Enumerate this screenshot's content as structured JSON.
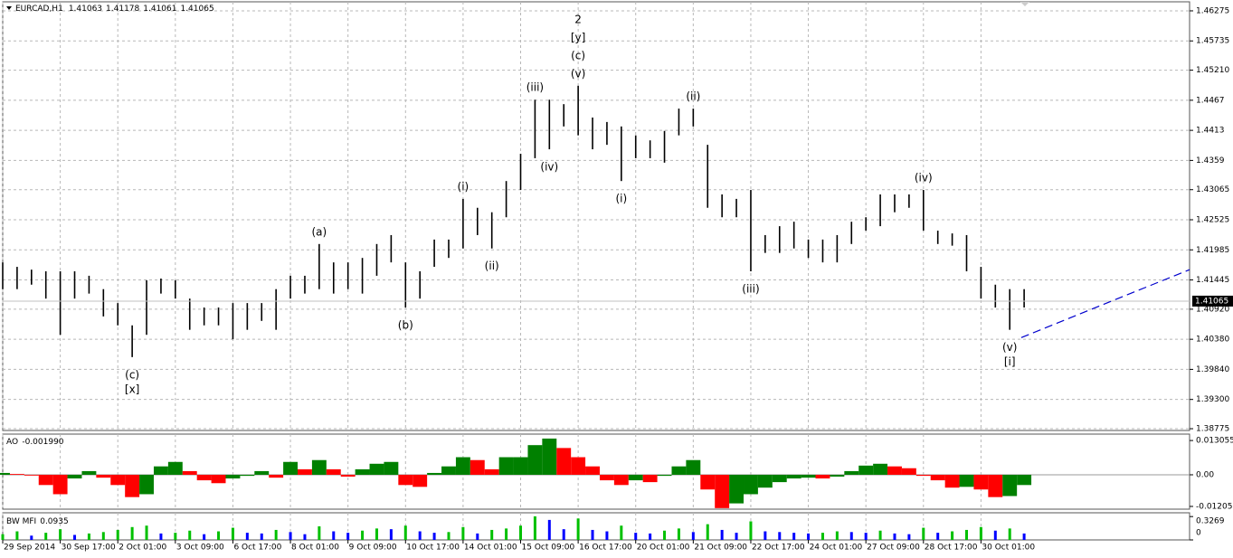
{
  "chart_data": [
    {
      "type": "bars",
      "title": "EURCAD,H1",
      "quote": [
        1.41063,
        1.41178,
        1.41061,
        1.41065
      ],
      "color": "#000000",
      "grid": true,
      "high": [
        1.4176,
        1.4168,
        1.4163,
        1.416,
        1.416,
        1.416,
        1.4152,
        1.4128,
        1.4103,
        1.4063,
        1.4144,
        1.4147,
        1.4144,
        1.4111,
        1.4095,
        1.4095,
        1.4103,
        1.4103,
        1.4103,
        1.4128,
        1.4152,
        1.4152,
        1.4209,
        1.4176,
        1.4176,
        1.4184,
        1.4209,
        1.4225,
        1.4176,
        1.416,
        1.4217,
        1.4217,
        1.429,
        1.4274,
        1.4266,
        1.4322,
        1.4371,
        1.4468,
        1.4468,
        1.446,
        1.4493,
        1.4436,
        1.4428,
        1.442,
        1.4404,
        1.4395,
        1.4412,
        1.4452,
        1.4452,
        1.4387,
        1.4298,
        1.429,
        1.4306,
        1.4225,
        1.4241,
        1.4249,
        1.4217,
        1.4217,
        1.4225,
        1.4249,
        1.4257,
        1.4298,
        1.4298,
        1.4298,
        1.4306,
        1.4233,
        1.4228,
        1.4225,
        1.4168,
        1.4136,
        1.4128,
        1.4128
      ],
      "low": [
        1.4128,
        1.4128,
        1.4136,
        1.4111,
        1.4046,
        1.4111,
        1.412,
        1.4079,
        1.4063,
        1.4006,
        1.4046,
        1.412,
        1.4111,
        1.4055,
        1.4063,
        1.4063,
        1.4038,
        1.4055,
        1.4071,
        1.4055,
        1.4111,
        1.412,
        1.4128,
        1.412,
        1.4128,
        1.412,
        1.4152,
        1.4176,
        1.4095,
        1.4111,
        1.4168,
        1.4184,
        1.4201,
        1.4225,
        1.4201,
        1.4257,
        1.4306,
        1.4363,
        1.4379,
        1.442,
        1.4404,
        1.4379,
        1.4387,
        1.4322,
        1.4363,
        1.4363,
        1.4355,
        1.4404,
        1.442,
        1.4274,
        1.4257,
        1.4257,
        1.416,
        1.4193,
        1.4193,
        1.4201,
        1.4184,
        1.4176,
        1.4176,
        1.4209,
        1.4233,
        1.4241,
        1.4266,
        1.4274,
        1.4233,
        1.4209,
        1.4206,
        1.416,
        1.4111,
        1.4095,
        1.4055,
        1.4095
      ],
      "xlim": [
        0,
        82.5
      ],
      "xticks": [
        {
          "value": 0,
          "label": "29 Sep 2014"
        },
        {
          "value": 4,
          "label": "30 Sep 17:00"
        },
        {
          "value": 8,
          "label": "2 Oct 01:00"
        },
        {
          "value": 12,
          "label": "3 Oct 09:00"
        },
        {
          "value": 16,
          "label": "6 Oct 17:00"
        },
        {
          "value": 20,
          "label": "8 Oct 01:00"
        },
        {
          "value": 24,
          "label": "9 Oct 09:00"
        },
        {
          "value": 28,
          "label": "10 Oct 17:00"
        },
        {
          "value": 32,
          "label": "14 Oct 01:00"
        },
        {
          "value": 36,
          "label": "15 Oct 09:00"
        },
        {
          "value": 40,
          "label": "16 Oct 17:00"
        },
        {
          "value": 44,
          "label": "20 Oct 01:00"
        },
        {
          "value": 48,
          "label": "21 Oct 09:00"
        },
        {
          "value": 52,
          "label": "22 Oct 17:00"
        },
        {
          "value": 56,
          "label": "24 Oct 01:00"
        },
        {
          "value": 60,
          "label": "27 Oct 09:00"
        },
        {
          "value": 64,
          "label": "28 Oct 17:00"
        },
        {
          "value": 68,
          "label": "30 Oct 01:00"
        }
      ],
      "ylim": [
        1.38743,
        1.46437
      ],
      "yticks": [
        1.46275,
        1.45735,
        {
          "value": 1.4521,
          "label": "1.45210"
        },
        1.4467,
        1.4413,
        1.4359,
        1.43065,
        1.42525,
        1.41985,
        1.41445,
        {
          "value": 1.4092,
          "label": "1.40920"
        },
        {
          "value": 1.4038,
          "label": "1.40380"
        },
        {
          "value": 1.3984,
          "label": "1.39840"
        },
        {
          "value": 1.393,
          "label": "1.39300"
        },
        1.38775
      ],
      "last_price": 1.41065,
      "trendline": {
        "x": [
          70.8,
          82.5
        ],
        "y": [
          1.4041,
          1.4163
        ],
        "color": "#0000cd"
      },
      "annotations": [
        {
          "bar": 40,
          "side": "above",
          "texts": [
            "2",
            "[y]",
            "(c)",
            "(v)"
          ]
        },
        {
          "bar": 37,
          "side": "above",
          "texts": [
            "(iii)"
          ]
        },
        {
          "bar": 38,
          "side": "below",
          "texts": [
            "(iv)"
          ]
        },
        {
          "bar": 32,
          "side": "above",
          "texts": [
            "(i)"
          ]
        },
        {
          "bar": 34,
          "side": "below",
          "texts": [
            "(ii)"
          ]
        },
        {
          "bar": 22,
          "side": "above",
          "texts": [
            "(a)"
          ]
        },
        {
          "bar": 28,
          "side": "below",
          "texts": [
            "(b)"
          ]
        },
        {
          "bar": 9,
          "side": "below",
          "texts": [
            "(c)",
            "[x]"
          ]
        },
        {
          "bar": 43,
          "side": "below",
          "texts": [
            "(i)"
          ]
        },
        {
          "bar": 48,
          "side": "above",
          "texts": [
            "(ii)"
          ]
        },
        {
          "bar": 52,
          "side": "below",
          "texts": [
            "(iii)"
          ]
        },
        {
          "bar": 64,
          "side": "above",
          "texts": [
            "(iv)"
          ]
        },
        {
          "bar": 70,
          "side": "below",
          "texts": [
            "(v)",
            "[i]"
          ]
        }
      ]
    },
    {
      "type": "oscillator",
      "title": "AO",
      "current": {
        "value": -0.00199,
        "label": "-0.001990"
      },
      "up_color": "#008000",
      "down_color": "#ff0000",
      "values": [
        0.0007,
        0.0003,
        -0.0003,
        -0.0039,
        -0.0074,
        -0.0014,
        0.0014,
        -0.0011,
        -0.0039,
        -0.0085,
        -0.0074,
        0.0032,
        0.0049,
        0.0014,
        -0.0021,
        -0.0032,
        -0.0014,
        -0.0004,
        0.0014,
        -0.0011,
        0.0049,
        0.0021,
        0.0056,
        0.0021,
        -0.0007,
        0.0021,
        0.0042,
        0.0049,
        -0.0039,
        -0.0046,
        0.0007,
        0.0032,
        0.0067,
        0.0056,
        0.0021,
        0.0067,
        0.0067,
        0.0113,
        0.0138,
        0.0102,
        0.0067,
        0.0032,
        -0.0021,
        -0.0039,
        -0.0021,
        -0.0028,
        -0.0004,
        0.0032,
        0.0056,
        -0.0056,
        -0.0127,
        -0.0109,
        -0.0074,
        -0.0049,
        -0.0028,
        -0.0014,
        -0.0011,
        -0.0014,
        -0.0007,
        0.0014,
        0.0035,
        0.0042,
        0.0032,
        0.0025,
        -0.0004,
        -0.0021,
        -0.0049,
        -0.0046,
        -0.0056,
        -0.0085,
        -0.0081,
        -0.0039
      ],
      "ylim": [
        -0.0131,
        0.0155
      ],
      "yticks": [
        0.013055,
        {
          "value": 0,
          "label": "0.00"
        },
        -0.012055
      ]
    },
    {
      "type": "volume",
      "title": "BW MFI",
      "current": 0.0935,
      "up_color": "#00c000",
      "down_color": "#0000ff",
      "values": [
        0.08,
        0.12,
        0.06,
        0.1,
        0.15,
        0.07,
        0.09,
        0.11,
        0.14,
        0.18,
        0.2,
        0.09,
        0.1,
        0.13,
        0.08,
        0.12,
        0.17,
        0.1,
        0.09,
        0.14,
        0.11,
        0.08,
        0.19,
        0.12,
        0.1,
        0.13,
        0.16,
        0.15,
        0.2,
        0.12,
        0.1,
        0.11,
        0.18,
        0.09,
        0.14,
        0.16,
        0.2,
        0.33,
        0.28,
        0.15,
        0.3,
        0.14,
        0.12,
        0.2,
        0.1,
        0.09,
        0.13,
        0.16,
        0.11,
        0.22,
        0.14,
        0.1,
        0.26,
        0.12,
        0.11,
        0.1,
        0.09,
        0.1,
        0.12,
        0.11,
        0.1,
        0.13,
        0.09,
        0.08,
        0.17,
        0.1,
        0.12,
        0.14,
        0.18,
        0.13,
        0.16,
        0.09
      ],
      "ylim": [
        0,
        0.38
      ],
      "yticks": [
        0.3269,
        0
      ]
    }
  ]
}
